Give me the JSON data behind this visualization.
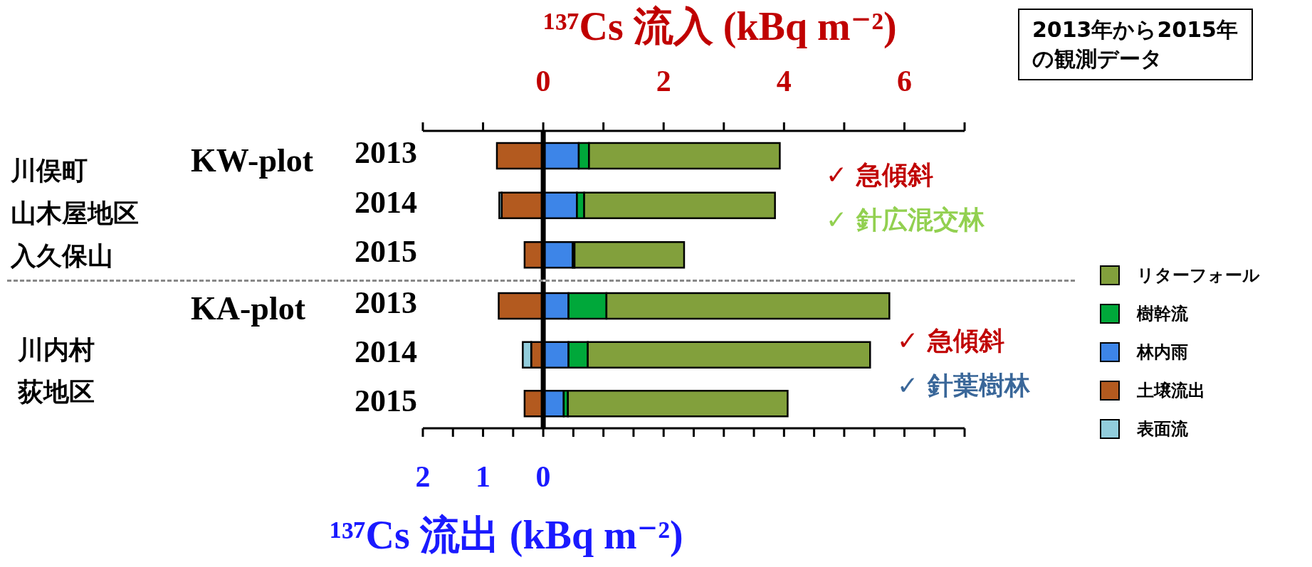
{
  "chart_data": [
    {
      "type": "bar",
      "orientation": "horizontal",
      "stacked": true,
      "categories": [
        "2013",
        "2014",
        "2015"
      ],
      "series": [
        {
          "color": "#3d85e8",
          "axis": "x2",
          "values": [
            0.59,
            0.56,
            0.49
          ]
        },
        {
          "color": "#00a83a",
          "axis": "x2",
          "values": [
            0.17,
            0.12,
            0.03
          ]
        },
        {
          "color": "#82a03c",
          "axis": "x2",
          "values": [
            3.17,
            3.17,
            1.82
          ]
        },
        {
          "color": "#b35a1f",
          "axis": "x2",
          "values": [
            -0.77,
            -0.69,
            -0.31
          ]
        },
        {
          "color": "#92cddc",
          "axis": "x2",
          "values": [
            null,
            -0.04,
            null
          ]
        }
      ],
      "x2label": "¹³⁷Cs 流入 (kBq m⁻²)",
      "x2lim": [
        -2,
        7
      ],
      "x2ticks": [
        {
          "value": -2,
          "label": null
        },
        {
          "value": -1,
          "label": null
        },
        0,
        {
          "value": 1,
          "label": null
        },
        2,
        {
          "value": 3,
          "label": null
        },
        4,
        {
          "value": 5,
          "label": null
        },
        6,
        {
          "value": 7,
          "label": null
        }
      ],
      "ref_lines": [
        {
          "axis": "x2",
          "value": 0,
          "color": "#000000"
        }
      ],
      "annotations": [
        "KW-plot",
        "川俣町",
        "山木屋地区",
        "入久保山",
        "✓ 急傾斜",
        "✓ 針広混交林",
        "2013年から2015年の観測データ"
      ]
    },
    {
      "type": "bar",
      "orientation": "horizontal",
      "stacked": true,
      "categories": [
        "2013",
        "2014",
        "2015"
      ],
      "series": [
        {
          "name": "林内雨",
          "color": "#3d85e8",
          "values": [
            0.42,
            0.42,
            0.34
          ]
        },
        {
          "name": "樹幹流",
          "color": "#00a83a",
          "values": [
            0.63,
            0.32,
            0.07
          ]
        },
        {
          "name": "リターフォール",
          "color": "#82a03c",
          "values": [
            4.7,
            4.69,
            3.65
          ]
        },
        {
          "name": "土壌流出",
          "color": "#b35a1f",
          "values": [
            -0.74,
            -0.2,
            -0.31
          ]
        },
        {
          "name": "表面流",
          "color": "#92cddc",
          "values": [
            null,
            -0.14,
            null
          ]
        }
      ],
      "xlabel": "¹³⁷Cs 流出 (kBq m⁻²)",
      "xlim": [
        -2,
        7
      ],
      "xticks": [
        {
          "value": -2,
          "label": "2"
        },
        {
          "value": -1.5,
          "label": null
        },
        {
          "value": -1,
          "label": "1"
        },
        {
          "value": -0.5,
          "label": null
        },
        {
          "value": 0,
          "label": "0"
        },
        {
          "value": 0.5,
          "label": null
        },
        {
          "value": 1,
          "label": null
        },
        {
          "value": 1.5,
          "label": null
        },
        {
          "value": 2,
          "label": null
        },
        {
          "value": 2.5,
          "label": null
        },
        {
          "value": 3,
          "label": null
        },
        {
          "value": 3.5,
          "label": null
        },
        {
          "value": 4,
          "label": null
        },
        {
          "value": 4.5,
          "label": null
        },
        {
          "value": 5,
          "label": null
        },
        {
          "value": 5.5,
          "label": null
        },
        {
          "value": 6,
          "label": null
        },
        {
          "value": 6.5,
          "label": null
        },
        {
          "value": 7,
          "label": null
        }
      ],
      "ref_lines": [
        {
          "axis": "x",
          "value": 0,
          "color": "#000000"
        }
      ],
      "legend": "right",
      "annotations": [
        "KA-plot",
        "川内村",
        "荻地区",
        "✓ 急傾斜",
        "✓ 針葉樹林"
      ]
    }
  ]
}
